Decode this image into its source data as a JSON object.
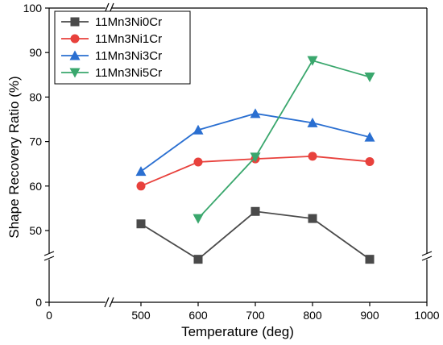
{
  "chart_data": {
    "type": "line",
    "xlabel": "Temperature (deg)",
    "ylabel": "Shape Recovery Ratio (%)",
    "xlim": [
      0,
      1000
    ],
    "ylim": [
      0,
      100
    ],
    "x_ticks": [
      0,
      500,
      600,
      700,
      800,
      900,
      1000
    ],
    "y_ticks": [
      0,
      50,
      60,
      70,
      80,
      90,
      100
    ],
    "x_axis_break": [
      0,
      500
    ],
    "y_axis_break": [
      0,
      50
    ],
    "legend_position": "top-left",
    "grid": false,
    "series": [
      {
        "name": "11Mn3Ni0Cr",
        "marker": "square",
        "color": "#4a4a4a",
        "x": [
          500,
          600,
          700,
          800,
          900
        ],
        "y": [
          51.5,
          46.8,
          54.3,
          52.7,
          46.8
        ]
      },
      {
        "name": "11Mn3Ni1Cr",
        "marker": "circle",
        "color": "#e8413c",
        "x": [
          500,
          600,
          700,
          800,
          900
        ],
        "y": [
          60.0,
          65.4,
          66.1,
          66.7,
          65.5
        ]
      },
      {
        "name": "11Mn3Ni3Cr",
        "marker": "triangle-up",
        "color": "#2a6fd1",
        "x": [
          500,
          600,
          700,
          800,
          900
        ],
        "y": [
          63.3,
          72.6,
          76.3,
          74.2,
          71.0
        ]
      },
      {
        "name": "11Mn3Ni5Cr",
        "marker": "triangle-down",
        "color": "#3aa76d",
        "x": [
          600,
          700,
          800,
          900
        ],
        "y": [
          52.7,
          66.5,
          88.2,
          84.5
        ]
      }
    ]
  }
}
